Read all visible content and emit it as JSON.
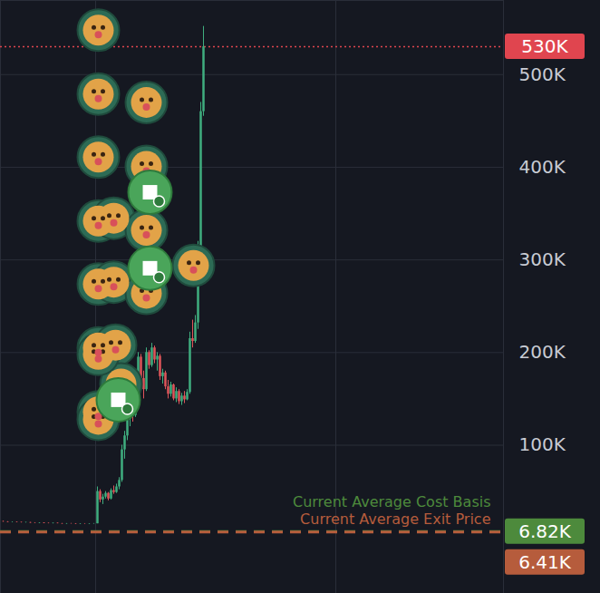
{
  "chart_data": {
    "type": "candlestick",
    "tick_labels": "y",
    "grid": true,
    "xlim": [
      0,
      555
    ],
    "xticks": [
      105,
      370
    ],
    "ylim": [
      -60000,
      580000
    ],
    "yticks": [
      {
        "value": 100000,
        "label": "100K"
      },
      {
        "value": 200000,
        "label": "200K"
      },
      {
        "value": 300000,
        "label": "300K"
      },
      {
        "value": 400000,
        "label": "400K"
      },
      {
        "value": 500000,
        "label": "500K"
      }
    ],
    "candles": {
      "x": [
        3,
        8,
        13,
        18,
        23,
        28,
        33,
        38,
        43,
        48,
        53,
        58,
        63,
        68,
        73,
        78,
        83,
        88,
        93,
        98,
        103,
        107,
        110,
        113,
        116,
        119,
        122,
        125,
        128,
        131,
        134,
        137,
        140,
        143,
        146,
        149,
        152,
        155,
        158,
        161,
        164,
        167,
        170,
        173,
        176,
        179,
        182,
        185,
        188,
        191,
        194,
        197,
        200,
        203,
        206,
        209,
        212,
        215,
        218,
        221,
        224
      ],
      "open": [
        17500,
        17200,
        16800,
        16900,
        16600,
        16300,
        16500,
        16000,
        15800,
        16100,
        15600,
        15400,
        15700,
        15300,
        15000,
        15200,
        15100,
        14800,
        15000,
        14900,
        15100,
        15200,
        50000,
        41000,
        44000,
        48000,
        42000,
        51000,
        49000,
        55000,
        62000,
        95000,
        110000,
        128000,
        150000,
        132000,
        165000,
        195000,
        172000,
        160000,
        200000,
        186000,
        205000,
        192000,
        196000,
        174000,
        178000,
        163000,
        155000,
        165000,
        150000,
        158000,
        147000,
        153000,
        149000,
        157000,
        215000,
        212000,
        232000,
        310000,
        460000
      ],
      "high": [
        18000,
        17500,
        17200,
        17300,
        16900,
        16800,
        16700,
        16400,
        16300,
        16300,
        16000,
        15900,
        16000,
        15600,
        15500,
        15600,
        15400,
        15300,
        15400,
        15300,
        15500,
        55000,
        52000,
        47000,
        50000,
        49000,
        53000,
        56000,
        58000,
        65000,
        100000,
        115000,
        135000,
        160000,
        152000,
        170000,
        200000,
        198000,
        180000,
        205000,
        202000,
        210000,
        207000,
        200000,
        198000,
        182000,
        180000,
        170000,
        168000,
        166000,
        162000,
        160000,
        156000,
        158000,
        160000,
        222000,
        235000,
        240000,
        320000,
        470000,
        552000
      ],
      "low": [
        17000,
        16600,
        16400,
        16500,
        16100,
        16000,
        15800,
        15600,
        15500,
        15400,
        15200,
        15100,
        15200,
        14800,
        14700,
        14900,
        14600,
        14500,
        14700,
        14600,
        14800,
        15200,
        38000,
        36000,
        42000,
        40000,
        41000,
        47000,
        48000,
        52000,
        60000,
        85000,
        105000,
        120000,
        125000,
        130000,
        160000,
        168000,
        150000,
        158000,
        182000,
        184000,
        188000,
        180000,
        170000,
        166000,
        160000,
        150000,
        152000,
        148000,
        146000,
        144000,
        143000,
        145000,
        148000,
        155000,
        205000,
        210000,
        225000,
        305000,
        455000
      ],
      "close": [
        17200,
        16800,
        16900,
        16600,
        16300,
        16500,
        16000,
        15800,
        16100,
        15600,
        15400,
        15700,
        15300,
        15000,
        15200,
        15100,
        14800,
        15000,
        14900,
        15100,
        15200,
        50000,
        41000,
        44000,
        48000,
        42000,
        51000,
        49000,
        55000,
        62000,
        95000,
        110000,
        128000,
        150000,
        132000,
        165000,
        195000,
        172000,
        160000,
        200000,
        186000,
        205000,
        192000,
        196000,
        174000,
        178000,
        163000,
        155000,
        165000,
        150000,
        158000,
        147000,
        153000,
        149000,
        157000,
        215000,
        212000,
        232000,
        310000,
        460000,
        530000
      ]
    },
    "trades": {
      "x": [
        108,
        108,
        161,
        108,
        161,
        108,
        125,
        161,
        108,
        125,
        161,
        213,
        108,
        127,
        108,
        133,
        108,
        108
      ],
      "y": [
        548000,
        479000,
        470000,
        411000,
        401000,
        342000,
        345000,
        332000,
        274000,
        276000,
        264000,
        294000,
        205000,
        208000,
        136000,
        166000,
        198000,
        128000
      ]
    },
    "transfers": {
      "x": [
        165,
        165,
        130
      ],
      "y": [
        373000,
        291000,
        149000
      ]
    },
    "current_price": {
      "value": 530000,
      "label": "530K",
      "color": "#e0454f"
    },
    "levels": [
      {
        "name": "Current Average Cost Basis",
        "value": 6820,
        "label": "6.82K",
        "color": "#4d8a3c"
      },
      {
        "name": "Current Average Exit Price",
        "value": 6410,
        "label": "6.41K",
        "color": "#b65c3c"
      }
    ]
  }
}
